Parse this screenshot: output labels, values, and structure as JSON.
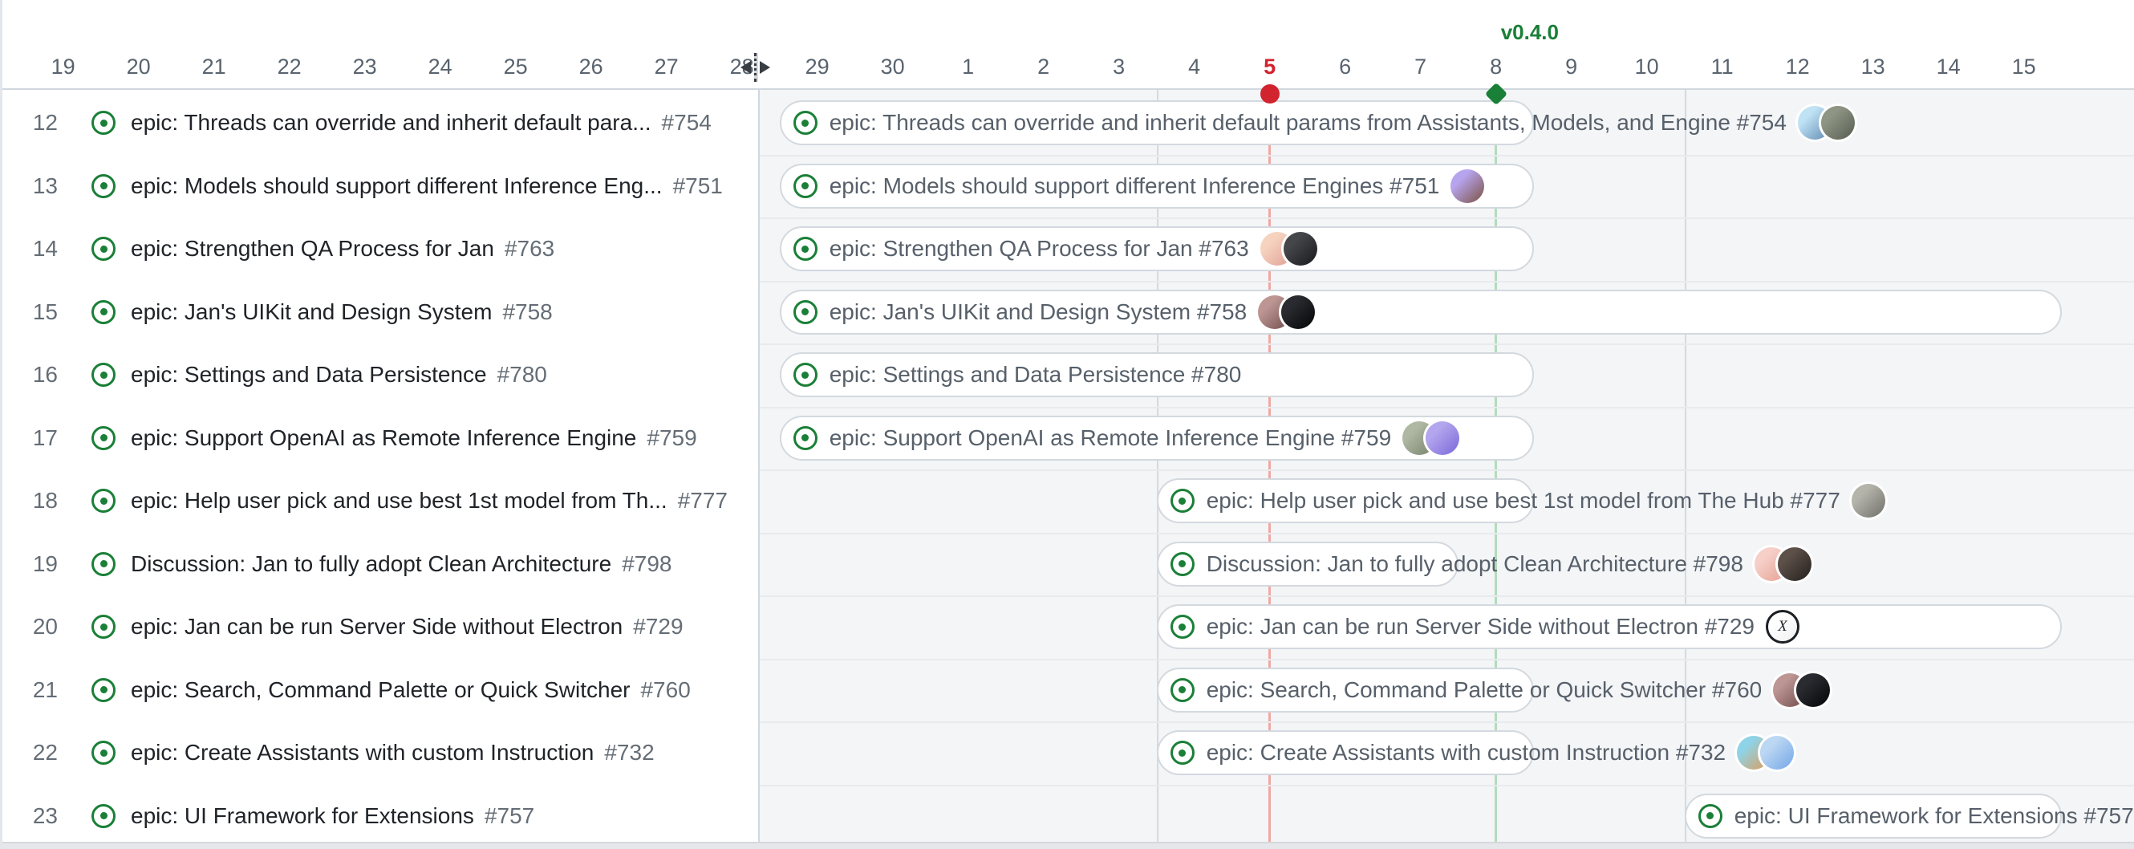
{
  "timeline": {
    "milestone": {
      "label": "v0.4.0",
      "color": "#1a7f37",
      "day_index": 19
    },
    "today": {
      "day_index": 16,
      "color": "#d1242f"
    },
    "days": [
      "19",
      "20",
      "21",
      "22",
      "23",
      "24",
      "25",
      "26",
      "27",
      "28",
      "29",
      "30",
      "1",
      "2",
      "3",
      "4",
      "5",
      "6",
      "7",
      "8",
      "9",
      "10",
      "11",
      "12",
      "13",
      "14",
      "15"
    ],
    "week_line_day_indices": [
      15,
      22
    ]
  },
  "rows": [
    {
      "num": "12",
      "table_title": "epic: Threads can override and inherit default para...",
      "issue": "#754",
      "bar_title": "epic: Threads can override and inherit default params from Assistants, Models, and Engine #754",
      "start": 10,
      "span": 10,
      "avatars": [
        {
          "c1": "#bfe2f4",
          "c2": "#5e87b0"
        },
        {
          "c1": "#8e9584",
          "c2": "#565c50"
        }
      ]
    },
    {
      "num": "13",
      "table_title": "epic: Models should support different Inference Eng...",
      "issue": "#751",
      "bar_title": "epic: Models should support different Inference Engines #751",
      "start": 10,
      "span": 10,
      "avatars": [
        {
          "c1": "#b7a4ee",
          "c2": "#7a5140"
        }
      ]
    },
    {
      "num": "14",
      "table_title": "epic: Strengthen QA Process for Jan",
      "issue": "#763",
      "bar_title": "epic: Strengthen QA Process for Jan #763",
      "start": 10,
      "span": 10,
      "avatars": [
        {
          "c1": "#f6d3bf",
          "c2": "#df9e97"
        },
        {
          "c1": "#45464a",
          "c2": "#19191c"
        }
      ]
    },
    {
      "num": "15",
      "table_title": "epic: Jan's UIKit and Design System",
      "issue": "#758",
      "bar_title": "epic: Jan's UIKit and Design System #758",
      "start": 10,
      "span": 17,
      "avatars": [
        {
          "c1": "#bd9694",
          "c2": "#6d4b49"
        },
        {
          "c1": "#2a2b30",
          "c2": "#050507"
        }
      ]
    },
    {
      "num": "16",
      "table_title": "epic: Settings and Data Persistence",
      "issue": "#780",
      "bar_title": "epic: Settings and Data Persistence #780",
      "start": 10,
      "span": 10,
      "avatars": []
    },
    {
      "num": "17",
      "table_title": "epic: Support OpenAI as Remote Inference Engine",
      "issue": "#759",
      "bar_title": "epic: Support OpenAI as Remote Inference Engine #759",
      "start": 10,
      "span": 10,
      "avatars": [
        {
          "c1": "#aeb8a2",
          "c2": "#77826c"
        },
        {
          "c1": "#b4a6ee",
          "c2": "#7a68d8"
        }
      ]
    },
    {
      "num": "18",
      "table_title": "epic: Help user pick and use best 1st model from Th...",
      "issue": "#777",
      "bar_title": "epic: Help user pick and use best 1st model from The Hub #777",
      "start": 15,
      "span": 5,
      "avatars": [
        {
          "c1": "#b4b4ab",
          "c2": "#70706a"
        }
      ]
    },
    {
      "num": "19",
      "table_title": "Discussion: Jan to fully adopt Clean Architecture",
      "issue": "#798",
      "bar_title": "Discussion: Jan to fully adopt Clean Architecture #798",
      "start": 15,
      "span": 4,
      "avatars": [
        {
          "c1": "#f6cfc9",
          "c2": "#e59f90"
        },
        {
          "c1": "#5c5049",
          "c2": "#241f1c"
        }
      ]
    },
    {
      "num": "20",
      "table_title": "epic: Jan can be run Server Side without Electron",
      "issue": "#729",
      "bar_title": "epic: Jan can be run Server Side without Electron #729",
      "start": 15,
      "span": 12,
      "avatars": [
        {
          "c1": "#ffffff",
          "c2": "#f0f0f0",
          "ring": "#1b1f23",
          "glyph": "X"
        }
      ]
    },
    {
      "num": "21",
      "table_title": "epic: Search, Command Palette or Quick Switcher",
      "issue": "#760",
      "bar_title": "epic: Search, Command Palette or Quick Switcher #760",
      "start": 15,
      "span": 5,
      "avatars": [
        {
          "c1": "#bd9694",
          "c2": "#6d4b49"
        },
        {
          "c1": "#2a2b30",
          "c2": "#050507"
        }
      ]
    },
    {
      "num": "22",
      "table_title": "epic: Create Assistants with custom Instruction",
      "issue": "#732",
      "bar_title": "epic: Create Assistants with custom Instruction #732",
      "start": 15,
      "span": 5,
      "avatars": [
        {
          "c1": "#8fd3e8",
          "c2": "#e09a55"
        },
        {
          "c1": "#bcd7f2",
          "c2": "#74a7e8"
        }
      ]
    },
    {
      "num": "23",
      "table_title": "epic: UI Framework for Extensions",
      "issue": "#757",
      "bar_title": "epic: UI Framework for Extensions #757",
      "start": 22,
      "span": 5,
      "avatars": []
    }
  ],
  "colors": {
    "accent_green": "#1a7f37",
    "today_red": "#d1242f",
    "bar_text": "#57606a",
    "table_text": "#1f2328",
    "muted_text": "#656d76",
    "timeline_bg": "#f3f5f7"
  }
}
